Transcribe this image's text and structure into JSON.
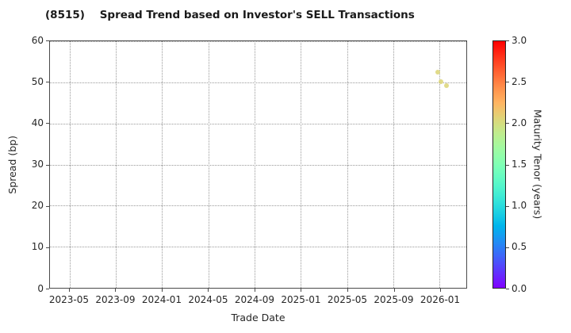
{
  "title": "(8515)    Spread Trend based on Investor's SELL Transactions",
  "chart_data": {
    "type": "scatter",
    "title": "(8515)    Spread Trend based on Investor's SELL Transactions",
    "xlabel": "Trade Date",
    "ylabel": "Spread (bp)",
    "ylim": [
      0,
      60
    ],
    "y_ticks": [
      0,
      10,
      20,
      30,
      40,
      50,
      60
    ],
    "x_tick_labels": [
      "2023-05",
      "2023-09",
      "2024-01",
      "2024-05",
      "2024-09",
      "2025-01",
      "2025-05",
      "2025-09",
      "2026-01"
    ],
    "grid": true,
    "grid_style": "dotted",
    "legend_position": "none",
    "points": [
      {
        "date": "2025-12-26",
        "spread_bp": 52.5,
        "tenor_years": 2.05
      },
      {
        "date": "2026-01-04",
        "spread_bp": 50.2,
        "tenor_years": 2.05
      },
      {
        "date": "2026-01-19",
        "spread_bp": 49.1,
        "tenor_years": 2.05
      }
    ],
    "colorbar": {
      "label": "Maturity Tenor (years)",
      "min": 0.0,
      "max": 3.0,
      "tick_labels": [
        "3.0",
        "2.5",
        "2.0",
        "1.5",
        "1.0",
        "0.5",
        "0.0"
      ],
      "colormap": "rainbow",
      "color_samples": {
        "0.0": "#8000ff",
        "0.5": "#2e96f5",
        "1.0": "#00d8d8",
        "1.5": "#80ffb5",
        "2.0": "#d4dd80",
        "2.5": "#ffa050",
        "3.0": "#ff0000"
      }
    },
    "point_color_hint": "#d5d26e"
  }
}
